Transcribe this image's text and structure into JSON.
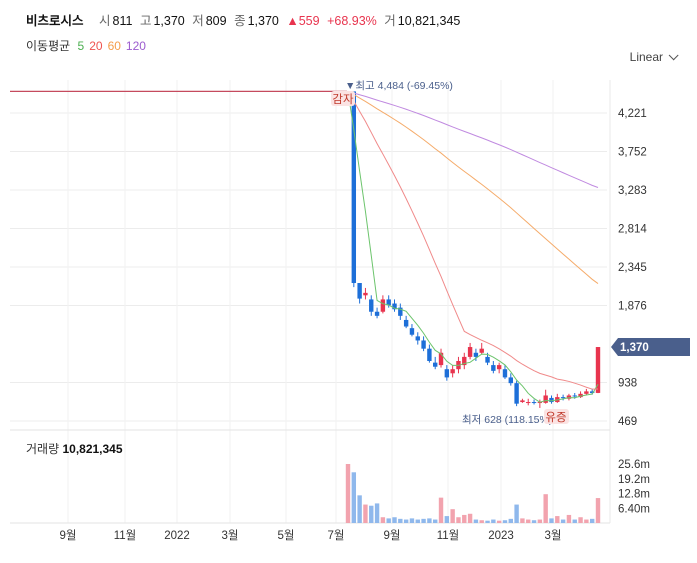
{
  "header": {
    "name": "비츠로시스",
    "open_label": "시",
    "open": "811",
    "high_label": "고",
    "high": "1,370",
    "low_label": "저",
    "low": "809",
    "close_label": "종",
    "close": "1,370",
    "change": "▲559",
    "change_pct": "+68.93%",
    "volume_label": "거",
    "volume": "10,821,345"
  },
  "ma": {
    "label": "이동평균",
    "periods": [
      {
        "p": "5",
        "color": "#4caf50"
      },
      {
        "p": "20",
        "color": "#ef5350"
      },
      {
        "p": "60",
        "color": "#f59d4a"
      },
      {
        "p": "120",
        "color": "#9c5ccf"
      }
    ]
  },
  "scale_mode": "Linear",
  "colors": {
    "up": "#e8344e",
    "down": "#1d6fd8",
    "ma5": "#6cc46c",
    "ma20": "#f08a8a",
    "ma60": "#f5ab6a",
    "ma120": "#c08ae0",
    "tag_bg": "#4a5f8c"
  },
  "annotations": {
    "max_label": "▼최고 4,484 (-69.45%)",
    "min_label": "최저 628 (118.15%)",
    "event1": "감자",
    "event2": "유증"
  },
  "volume_panel": {
    "label": "거래량",
    "value": "10,821,345"
  },
  "chart_data": {
    "type": "candlestick",
    "price_axis": {
      "ticks": [
        4221,
        3752,
        3283,
        2814,
        2345,
        1876,
        938,
        469
      ],
      "tick_labels": [
        "4,221",
        "3,752",
        "3,283",
        "2,814",
        "2,345",
        "1,876",
        "938",
        "469"
      ],
      "range": [
        380,
        4620
      ]
    },
    "current_price_tag": "1,370",
    "pre_halt_price": 4484,
    "x_ticks": [
      "9월",
      "11월",
      "2022",
      "3월",
      "5월",
      "7월",
      "9월",
      "11월",
      "2023",
      "3월"
    ],
    "candles": [
      [
        4484,
        4484,
        4484,
        4484
      ],
      [
        4484,
        4484,
        2100,
        2150
      ],
      [
        2150,
        2150,
        1900,
        1960
      ],
      [
        2000,
        2090,
        1950,
        2030
      ],
      [
        1950,
        2000,
        1750,
        1800
      ],
      [
        1800,
        1850,
        1720,
        1750
      ],
      [
        1800,
        2000,
        1780,
        1950
      ],
      [
        1950,
        2000,
        1850,
        1880
      ],
      [
        1900,
        1950,
        1800,
        1830
      ],
      [
        1850,
        1900,
        1700,
        1750
      ],
      [
        1700,
        1750,
        1600,
        1620
      ],
      [
        1600,
        1650,
        1500,
        1520
      ],
      [
        1500,
        1550,
        1400,
        1450
      ],
      [
        1450,
        1500,
        1320,
        1350
      ],
      [
        1350,
        1400,
        1180,
        1200
      ],
      [
        1180,
        1250,
        1100,
        1130
      ],
      [
        1150,
        1350,
        1120,
        1300
      ],
      [
        1100,
        1150,
        960,
        1000
      ],
      [
        1050,
        1150,
        1000,
        1100
      ],
      [
        1100,
        1250,
        1050,
        1200
      ],
      [
        1150,
        1300,
        1100,
        1250
      ],
      [
        1250,
        1420,
        1220,
        1370
      ],
      [
        1300,
        1350,
        1200,
        1250
      ],
      [
        1300,
        1420,
        1280,
        1350
      ],
      [
        1250,
        1300,
        1150,
        1180
      ],
      [
        1150,
        1200,
        1050,
        1080
      ],
      [
        1100,
        1180,
        1050,
        1150
      ],
      [
        1100,
        1150,
        980,
        1000
      ],
      [
        1000,
        1050,
        900,
        930
      ],
      [
        930,
        960,
        650,
        680
      ],
      [
        700,
        740,
        690,
        720
      ],
      [
        700,
        740,
        660,
        700
      ],
      [
        700,
        730,
        670,
        690
      ],
      [
        700,
        730,
        628,
        700
      ],
      [
        690,
        850,
        680,
        780
      ],
      [
        750,
        780,
        680,
        700
      ],
      [
        700,
        800,
        690,
        760
      ],
      [
        760,
        790,
        720,
        750
      ],
      [
        740,
        800,
        720,
        780
      ],
      [
        780,
        810,
        740,
        770
      ],
      [
        760,
        830,
        750,
        800
      ],
      [
        800,
        860,
        780,
        830
      ],
      [
        830,
        860,
        790,
        810
      ],
      [
        811,
        1370,
        809,
        1370
      ]
    ],
    "volume_axis": {
      "ticks": [
        25.6,
        19.2,
        12.8,
        6.4
      ],
      "tick_labels": [
        "25.6m",
        "19.2m",
        "12.8m",
        "6.40m"
      ],
      "unit": "m",
      "max": 30
    },
    "volume": [
      25.6,
      22.0,
      12.0,
      8.0,
      7.5,
      8.5,
      2.5,
      2.0,
      2.5,
      1.8,
      1.5,
      2.0,
      1.5,
      1.8,
      2.0,
      1.5,
      11.0,
      3.0,
      6.0,
      2.5,
      3.5,
      4.0,
      1.5,
      1.2,
      1.0,
      1.5,
      1.0,
      1.2,
      1.8,
      8.0,
      2.0,
      1.5,
      1.2,
      1.5,
      12.5,
      2.0,
      3.0,
      1.5,
      3.5,
      1.5,
      2.5,
      1.5,
      1.8,
      10.82
    ]
  }
}
